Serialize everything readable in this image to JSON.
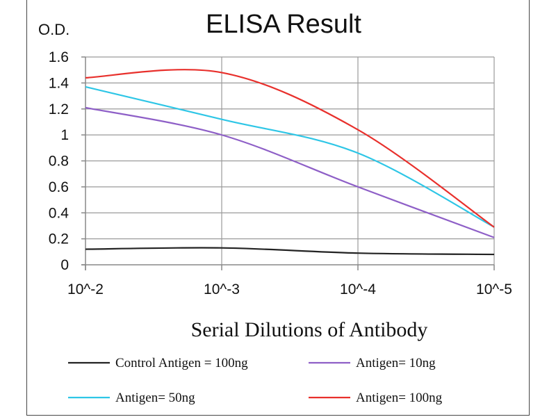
{
  "chart_data": {
    "type": "line",
    "title": "ELISA Result",
    "ylabel": "O.D.",
    "xlabel": "Serial Dilutions  of Antibody",
    "categories": [
      "10^-2",
      "10^-3",
      "10^-4",
      "10^-5"
    ],
    "ylim": [
      0,
      1.6
    ],
    "yticks": [
      0,
      0.2,
      0.4,
      0.6,
      0.8,
      1,
      1.2,
      1.4,
      1.6
    ],
    "grid": true,
    "legend_position": "bottom",
    "series": [
      {
        "name": "Control Antigen = 100ng",
        "color": "#222222",
        "values": [
          0.12,
          0.13,
          0.09,
          0.08
        ]
      },
      {
        "name": "Antigen= 10ng",
        "color": "#8e5fc7",
        "values": [
          1.21,
          1.0,
          0.6,
          0.21
        ]
      },
      {
        "name": "Antigen= 50ng",
        "color": "#2ec6e6",
        "values": [
          1.37,
          1.12,
          0.86,
          0.29
        ]
      },
      {
        "name": "Antigen= 100ng",
        "color": "#e8302c",
        "values": [
          1.44,
          1.48,
          1.04,
          0.29
        ]
      }
    ]
  }
}
